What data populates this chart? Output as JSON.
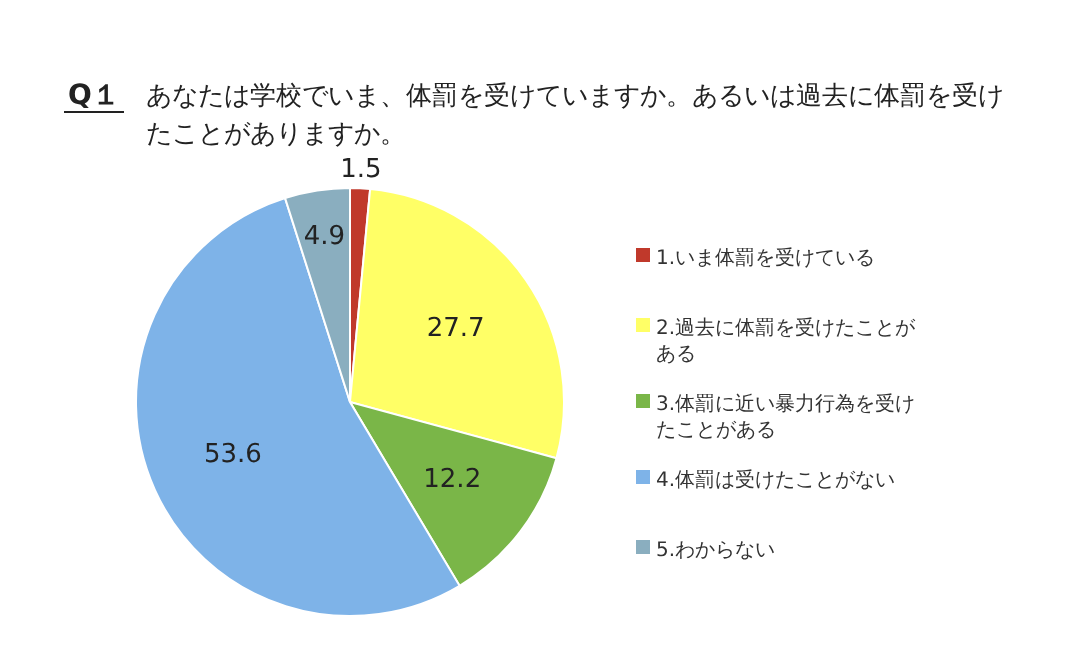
{
  "chart_data": {
    "type": "pie",
    "title": "Q１",
    "subtitle": "あなたは学校でいま、体罰を受けていますか。あるいは過去に体罰を受けたことがありますか。",
    "categories": [
      "1.いま体罰を受けている",
      "2.過去に体罰を受けたことがある",
      "3.体罰に近い暴力行為を受けたことがある",
      "4.体罰は受けたことがない",
      "5.わからない"
    ],
    "values": [
      1.5,
      27.7,
      12.2,
      53.6,
      4.9
    ],
    "colors": [
      "#c0392b",
      "#ffff66",
      "#7ab648",
      "#7eb3e8",
      "#8aaebf"
    ],
    "data_labels": true,
    "legend": "right"
  }
}
